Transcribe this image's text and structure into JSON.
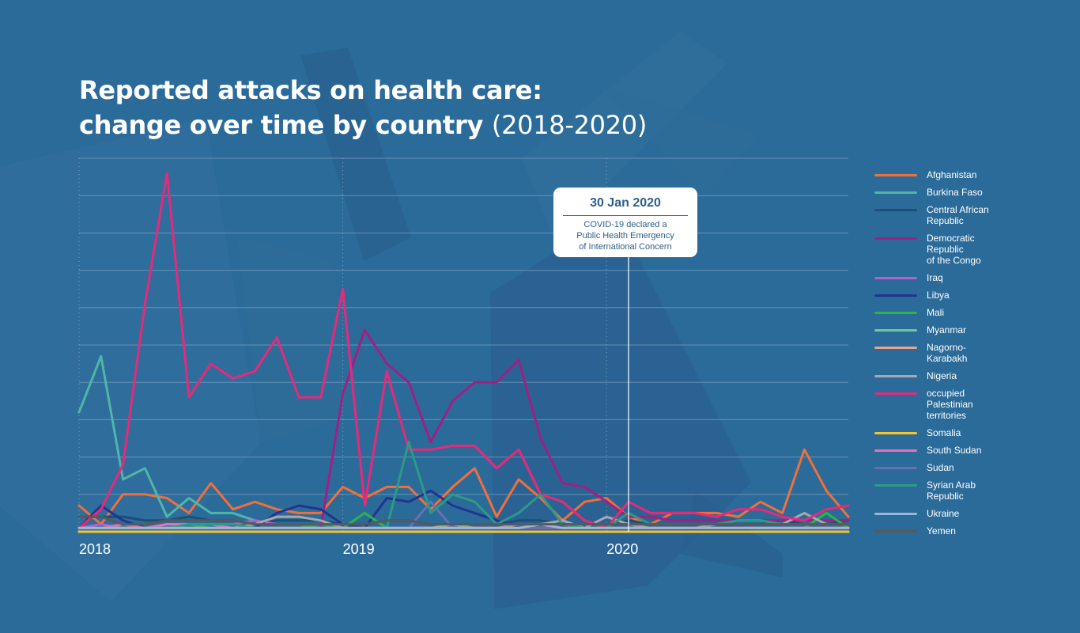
{
  "chart_data": {
    "type": "line",
    "title_main": "Reported attacks on health care:",
    "title_line2": "change over time by country",
    "title_years": "(2018-2020)",
    "x_ticks": [
      "2018",
      "2019",
      "2020"
    ],
    "x_tick_months": [
      0,
      12,
      24
    ],
    "months": 36,
    "ylim": [
      0,
      100
    ],
    "grid": true,
    "legend_position": "right",
    "annotation": {
      "month": 25,
      "date": "30 Jan 2020",
      "text": "COVID-19 declared a\nPublic Health Emergency\nof International Concern"
    },
    "series": [
      {
        "name": "Afghanistan",
        "color": "#f26f3a",
        "values": [
          7,
          2,
          10,
          10,
          9,
          5,
          13,
          6,
          8,
          6,
          5,
          5,
          12,
          9,
          12,
          12,
          6,
          12,
          17,
          4,
          14,
          9,
          3,
          8,
          9,
          4,
          2,
          5,
          5,
          5,
          4,
          8,
          5,
          22,
          11,
          4
        ]
      },
      {
        "name": "Burkina Faso",
        "color": "#4fb6a7",
        "values": [
          32,
          47,
          14,
          17,
          4,
          9,
          5,
          5,
          3,
          2,
          2,
          2,
          1,
          1,
          1,
          1,
          1,
          1,
          1,
          1,
          1,
          1,
          1,
          1,
          1,
          1,
          1,
          1,
          1,
          1,
          1,
          1,
          1,
          1,
          1,
          1
        ]
      },
      {
        "name": "Central African Republic",
        "color": "#1d4e75",
        "values": [
          4,
          4,
          4,
          3,
          3,
          4,
          3,
          3,
          2,
          3,
          3,
          3,
          2,
          2,
          3,
          3,
          2,
          2,
          2,
          2,
          3,
          3,
          2,
          2,
          2,
          3,
          2,
          2,
          2,
          2,
          2,
          2,
          3,
          2,
          2,
          3
        ]
      },
      {
        "name": "Democratic Republic\nof the Congo",
        "color": "#a01f86",
        "values": [
          1,
          1,
          1,
          1,
          1,
          1,
          1,
          1,
          1,
          1,
          1,
          1,
          37,
          54,
          45,
          40,
          24,
          35,
          40,
          40,
          46,
          25,
          13,
          12,
          8,
          4,
          4,
          3,
          3,
          3,
          3,
          3,
          3,
          3,
          3,
          3
        ]
      },
      {
        "name": "Iraq",
        "color": "#b85fcb",
        "values": [
          1,
          2,
          1,
          1,
          2,
          2,
          2,
          2,
          3,
          2,
          2,
          2,
          1,
          1,
          1,
          1,
          1,
          1,
          1,
          1,
          1,
          1,
          1,
          1,
          1,
          1,
          1,
          1,
          1,
          1,
          1,
          1,
          1,
          1,
          1,
          1
        ]
      },
      {
        "name": "Libya",
        "color": "#22348f",
        "values": [
          1,
          7,
          3,
          1,
          1,
          1,
          1,
          1,
          1,
          5,
          7,
          6,
          2,
          1,
          9,
          8,
          11,
          7,
          5,
          3,
          1,
          1,
          1,
          1,
          1,
          1,
          1,
          1,
          1,
          1,
          1,
          1,
          1,
          1,
          1,
          1
        ]
      },
      {
        "name": "Mali",
        "color": "#2eb24a",
        "values": [
          1,
          1,
          1,
          1,
          1,
          2,
          1,
          1,
          1,
          1,
          1,
          2,
          1,
          5,
          1,
          1,
          1,
          1,
          1,
          1,
          1,
          1,
          1,
          1,
          1,
          1,
          1,
          1,
          1,
          1,
          1,
          1,
          1,
          1,
          5,
          1
        ]
      },
      {
        "name": "Myanmar",
        "color": "#6fc79d",
        "values": [
          1,
          1,
          1,
          1,
          1,
          1,
          1,
          1,
          1,
          1,
          1,
          1,
          1,
          1,
          1,
          1,
          1,
          2,
          1,
          1,
          1,
          1,
          1,
          1,
          1,
          1,
          1,
          1,
          1,
          1,
          1,
          1,
          1,
          1,
          1,
          1
        ]
      },
      {
        "name": "Nagorno-\nKarabakh",
        "color": "#f3a089",
        "values": [
          0,
          0,
          0,
          0,
          0,
          0,
          0,
          0,
          0,
          0,
          0,
          0,
          0,
          0,
          0,
          0,
          0,
          0,
          0,
          0,
          0,
          0,
          0,
          0,
          0,
          0,
          0,
          0,
          0,
          0,
          0,
          0,
          0,
          0,
          0,
          0
        ]
      },
      {
        "name": "Nigeria",
        "color": "#a7a9ac",
        "values": [
          1,
          1,
          1,
          1,
          1,
          1,
          1,
          1,
          2,
          4,
          4,
          3,
          1,
          1,
          1,
          1,
          1,
          1,
          1,
          1,
          2,
          2,
          3,
          1,
          4,
          2,
          1,
          1,
          1,
          2,
          3,
          3,
          2,
          5,
          2,
          2
        ]
      },
      {
        "name": "occupied\nPalestinian\nterritories",
        "color": "#e8297a",
        "values": [
          1,
          6,
          18,
          61,
          96,
          36,
          45,
          41,
          43,
          52,
          36,
          36,
          65,
          7,
          43,
          22,
          22,
          23,
          23,
          17,
          22,
          10,
          8,
          3,
          1,
          8,
          5,
          5,
          5,
          4,
          6,
          6,
          4,
          3,
          6,
          7
        ]
      },
      {
        "name": "Somalia",
        "color": "#f7c42b",
        "values": [
          0,
          0,
          0,
          0,
          0,
          0,
          0,
          0,
          0,
          0,
          0,
          0,
          0,
          0,
          0,
          0,
          0,
          0,
          0,
          0,
          0,
          0,
          0,
          0,
          0,
          0,
          0,
          0,
          0,
          0,
          0,
          0,
          0,
          0,
          0,
          0
        ]
      },
      {
        "name": "South Sudan",
        "color": "#e472b6",
        "values": [
          1,
          1,
          2,
          1,
          2,
          2,
          2,
          1,
          1,
          1,
          1,
          1,
          1,
          1,
          1,
          1,
          1,
          1,
          1,
          1,
          1,
          1,
          1,
          1,
          1,
          1,
          1,
          1,
          1,
          1,
          1,
          1,
          1,
          1,
          1,
          1
        ]
      },
      {
        "name": "Sudan",
        "color": "#6a6fb3",
        "values": [
          1,
          1,
          1,
          1,
          1,
          1,
          1,
          1,
          1,
          1,
          1,
          1,
          1,
          1,
          1,
          1,
          8,
          1,
          1,
          1,
          1,
          1,
          1,
          1,
          1,
          1,
          1,
          1,
          1,
          1,
          1,
          1,
          1,
          1,
          1,
          1
        ]
      },
      {
        "name": "Syrian Arab\nRepublic",
        "color": "#2c9a86",
        "values": [
          1,
          1,
          1,
          1,
          1,
          2,
          2,
          2,
          1,
          1,
          1,
          1,
          1,
          1,
          1,
          24,
          5,
          10,
          8,
          2,
          5,
          10,
          2,
          1,
          1,
          5,
          2,
          2,
          2,
          2,
          3,
          3,
          2,
          2,
          2,
          2
        ]
      },
      {
        "name": "Ukraine",
        "color": "#9db6d6",
        "values": [
          1,
          1,
          1,
          1,
          1,
          1,
          1,
          1,
          1,
          1,
          1,
          1,
          1,
          1,
          1,
          1,
          1,
          1,
          1,
          1,
          1,
          2,
          1,
          1,
          1,
          1,
          1,
          1,
          1,
          1,
          1,
          1,
          1,
          1,
          1,
          1
        ]
      },
      {
        "name": "Yemen",
        "color": "#57595b",
        "values": [
          4,
          4,
          2,
          2,
          3,
          3,
          3,
          3,
          2,
          2,
          2,
          2,
          2,
          2,
          3,
          3,
          2,
          2,
          2,
          2,
          2,
          2,
          2,
          2,
          2,
          2,
          2,
          2,
          2,
          2,
          2,
          2,
          2,
          2,
          2,
          2
        ]
      }
    ]
  }
}
